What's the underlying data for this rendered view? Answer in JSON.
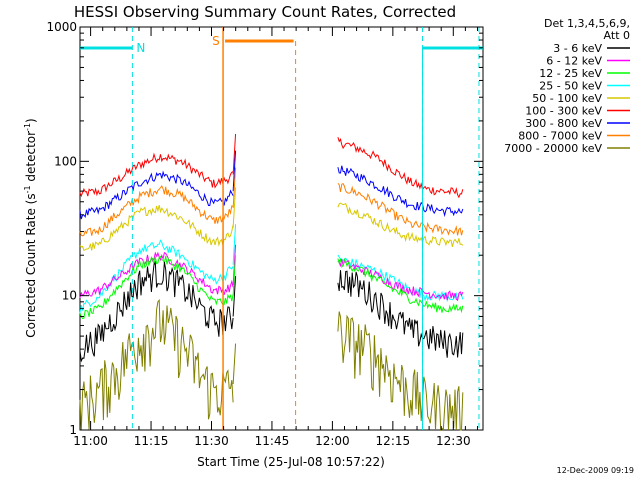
{
  "chart_data": {
    "type": "line",
    "title": "HESSI Observing Summary Count Rates, Corrected",
    "xlabel": "Start Time (25-Jul-08 10:57:22)",
    "ylabel_main": "Corrected Count Rate (s",
    "ylabel_sup1": "-1",
    "ylabel_mid": " detector",
    "ylabel_sup2": "-1",
    "ylabel_end": ")",
    "x_unit": "minutes since 10:57:22",
    "xlim": [
      0,
      100
    ],
    "ylim": [
      1,
      1000
    ],
    "yscale": "log",
    "x_ticks": [
      {
        "x": 2.63,
        "label": "11:00"
      },
      {
        "x": 17.63,
        "label": "11:15"
      },
      {
        "x": 32.63,
        "label": "11:30"
      },
      {
        "x": 47.63,
        "label": "11:45"
      },
      {
        "x": 62.63,
        "label": "12:00"
      },
      {
        "x": 77.63,
        "label": "12:15"
      },
      {
        "x": 92.63,
        "label": "12:30"
      }
    ],
    "y_ticks": [
      {
        "y": 1,
        "label": "1"
      },
      {
        "y": 10,
        "label": "10"
      },
      {
        "y": 100,
        "label": "100"
      },
      {
        "y": 1000,
        "label": "1000"
      }
    ],
    "legend": {
      "header_line1": "Det 1,3,4,5,6,9,",
      "header_line2": "Att 0",
      "entries": [
        {
          "label": "3 - 6 keV",
          "color": "#000000"
        },
        {
          "label": "6 - 12 keV",
          "color": "#ff00ff"
        },
        {
          "label": "12 - 25 keV",
          "color": "#00ff00"
        },
        {
          "label": "25 - 50 keV",
          "color": "#00ffff"
        },
        {
          "label": "50 - 100 keV",
          "color": "#d8c800"
        },
        {
          "label": "100 - 300 keV",
          "color": "#ff0000"
        },
        {
          "label": "300 - 800 keV",
          "color": "#0000ff"
        },
        {
          "label": "800 - 7000 keV",
          "color": "#ff8000"
        },
        {
          "label": "7000 - 20000 keV",
          "color": "#808000"
        }
      ]
    },
    "series": [
      {
        "name": "100 - 300 keV",
        "color": "#ff0000",
        "seg1": [
          [
            0,
            57
          ],
          [
            5,
            60
          ],
          [
            10,
            75
          ],
          [
            15,
            95
          ],
          [
            20,
            110
          ],
          [
            25,
            100
          ],
          [
            30,
            78
          ],
          [
            33,
            68
          ],
          [
            36,
            72
          ],
          [
            38,
            80
          ]
        ],
        "seg2": [
          [
            64,
            140
          ],
          [
            69,
            125
          ],
          [
            74,
            105
          ],
          [
            78,
            85
          ],
          [
            82,
            70
          ],
          [
            86,
            62
          ],
          [
            90,
            60
          ],
          [
            95,
            58
          ]
        ]
      },
      {
        "name": "300 - 800 keV",
        "color": "#0000ff",
        "seg1": [
          [
            0,
            40
          ],
          [
            5,
            43
          ],
          [
            10,
            55
          ],
          [
            15,
            70
          ],
          [
            20,
            80
          ],
          [
            25,
            72
          ],
          [
            30,
            56
          ],
          [
            33,
            48
          ],
          [
            36,
            50
          ],
          [
            38,
            60
          ]
        ],
        "seg2": [
          [
            64,
            88
          ],
          [
            69,
            78
          ],
          [
            74,
            65
          ],
          [
            78,
            55
          ],
          [
            82,
            48
          ],
          [
            86,
            45
          ],
          [
            90,
            43
          ],
          [
            95,
            42
          ]
        ]
      },
      {
        "name": "800 - 7000 keV",
        "color": "#ff8000",
        "seg1": [
          [
            0,
            28
          ],
          [
            5,
            31
          ],
          [
            10,
            42
          ],
          [
            15,
            55
          ],
          [
            20,
            63
          ],
          [
            25,
            56
          ],
          [
            30,
            42
          ],
          [
            33,
            36
          ],
          [
            36,
            38
          ],
          [
            38,
            45
          ]
        ],
        "seg2": [
          [
            64,
            65
          ],
          [
            69,
            58
          ],
          [
            74,
            48
          ],
          [
            78,
            40
          ],
          [
            82,
            34
          ],
          [
            86,
            32
          ],
          [
            90,
            31
          ],
          [
            95,
            30
          ]
        ]
      },
      {
        "name": "50 - 100 keV",
        "color": "#d8c800",
        "seg1": [
          [
            0,
            22
          ],
          [
            5,
            24
          ],
          [
            10,
            32
          ],
          [
            15,
            42
          ],
          [
            20,
            45
          ],
          [
            25,
            38
          ],
          [
            30,
            29
          ],
          [
            33,
            25
          ],
          [
            36,
            26
          ],
          [
            38,
            32
          ]
        ],
        "seg2": [
          [
            64,
            48
          ],
          [
            69,
            42
          ],
          [
            74,
            35
          ],
          [
            78,
            30
          ],
          [
            82,
            27
          ],
          [
            86,
            26
          ],
          [
            90,
            25
          ],
          [
            95,
            25
          ]
        ]
      },
      {
        "name": "25 - 50 keV",
        "color": "#00ffff",
        "seg1": [
          [
            0,
            8
          ],
          [
            5,
            10
          ],
          [
            10,
            15
          ],
          [
            15,
            22
          ],
          [
            20,
            24
          ],
          [
            25,
            20
          ],
          [
            30,
            15
          ],
          [
            33,
            13
          ],
          [
            36,
            14
          ],
          [
            38,
            17
          ]
        ],
        "seg2": [
          [
            64,
            19
          ],
          [
            69,
            17
          ],
          [
            74,
            15
          ],
          [
            78,
            13
          ],
          [
            82,
            11
          ],
          [
            86,
            10
          ],
          [
            90,
            10
          ],
          [
            95,
            9.5
          ]
        ]
      },
      {
        "name": "6 - 12 keV",
        "color": "#ff00ff",
        "seg1": [
          [
            0,
            10
          ],
          [
            5,
            11
          ],
          [
            10,
            14
          ],
          [
            15,
            18
          ],
          [
            20,
            20
          ],
          [
            25,
            17
          ],
          [
            30,
            13
          ],
          [
            33,
            11
          ],
          [
            36,
            11
          ],
          [
            38,
            12
          ]
        ],
        "seg2": [
          [
            64,
            18
          ],
          [
            69,
            16
          ],
          [
            74,
            14
          ],
          [
            78,
            12
          ],
          [
            82,
            11
          ],
          [
            86,
            10.5
          ],
          [
            90,
            10
          ],
          [
            95,
            10
          ]
        ]
      },
      {
        "name": "12 - 25 keV",
        "color": "#00ff00",
        "seg1": [
          [
            0,
            7
          ],
          [
            5,
            8
          ],
          [
            10,
            12
          ],
          [
            15,
            17
          ],
          [
            20,
            19
          ],
          [
            25,
            16
          ],
          [
            30,
            11
          ],
          [
            33,
            9
          ],
          [
            36,
            9
          ],
          [
            38,
            10
          ]
        ],
        "seg2": [
          [
            64,
            18
          ],
          [
            69,
            16
          ],
          [
            74,
            13
          ],
          [
            78,
            11
          ],
          [
            82,
            9.5
          ],
          [
            86,
            8.5
          ],
          [
            90,
            8
          ],
          [
            95,
            8
          ]
        ]
      },
      {
        "name": "3 - 6 keV",
        "color": "#000000",
        "seg1": [
          [
            0,
            4
          ],
          [
            5,
            5
          ],
          [
            10,
            8
          ],
          [
            15,
            13
          ],
          [
            20,
            15
          ],
          [
            25,
            12
          ],
          [
            30,
            8
          ],
          [
            33,
            6.5
          ],
          [
            36,
            6.5
          ],
          [
            38,
            7
          ]
        ],
        "seg2": [
          [
            64,
            14
          ],
          [
            69,
            12
          ],
          [
            74,
            9
          ],
          [
            78,
            7
          ],
          [
            82,
            5.5
          ],
          [
            86,
            5
          ],
          [
            90,
            4.5
          ],
          [
            95,
            4.5
          ]
        ]
      },
      {
        "name": "7000 - 20000 keV",
        "color": "#808000",
        "seg1": [
          [
            0,
            1.5
          ],
          [
            5,
            2
          ],
          [
            10,
            3
          ],
          [
            15,
            5
          ],
          [
            20,
            6.5
          ],
          [
            25,
            4.5
          ],
          [
            30,
            2.5
          ],
          [
            33,
            2
          ],
          [
            36,
            2
          ],
          [
            38,
            2.2
          ]
        ],
        "seg2": [
          [
            64,
            5.5
          ],
          [
            69,
            4.5
          ],
          [
            74,
            3.5
          ],
          [
            78,
            2.5
          ],
          [
            82,
            2
          ],
          [
            86,
            1.6
          ],
          [
            90,
            1.5
          ],
          [
            95,
            1.4
          ]
        ]
      }
    ],
    "annotations": {
      "N_label": "N",
      "S_label": "S",
      "night_bars": [
        [
          0,
          13
        ],
        [
          85,
          100
        ]
      ],
      "night_bounds": [
        13,
        85,
        99
      ],
      "saa_bar": [
        36,
        53
      ],
      "saa_bounds": [
        35.5,
        53.5
      ]
    },
    "footer_date": "12-Dec-2009 09:19"
  }
}
